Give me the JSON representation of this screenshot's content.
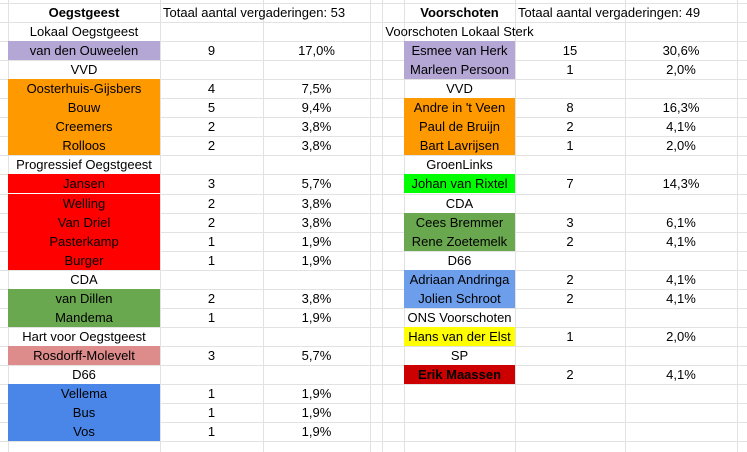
{
  "colors": {
    "gridline": "#e2e2e2",
    "purple": "#b4a7d6",
    "orange": "#ff9900",
    "red": "#ff0000",
    "darkred": "#cc0000",
    "green": "#6aa84f",
    "brightgreen": "#00ff00",
    "rose": "#dd8b8b",
    "blue": "#4a86e8",
    "lightblue": "#6d9eeb",
    "yellow": "#ffff00"
  },
  "left": {
    "title": "Oegstgeest",
    "total_label": "Totaal aantal vergaderingen: 53",
    "rows": [
      {
        "type": "party",
        "label": "Lokaal Oegstgeest"
      },
      {
        "type": "member",
        "name": "van den Ouweelen",
        "count": "9",
        "pct": "17,0%",
        "fill": "purple"
      },
      {
        "type": "party",
        "label": "VVD"
      },
      {
        "type": "member",
        "name": "Oosterhuis-Gijsbers",
        "count": "4",
        "pct": "7,5%",
        "fill": "orange"
      },
      {
        "type": "member",
        "name": "Bouw",
        "count": "5",
        "pct": "9,4%",
        "fill": "orange"
      },
      {
        "type": "member",
        "name": "Creemers",
        "count": "2",
        "pct": "3,8%",
        "fill": "orange"
      },
      {
        "type": "member",
        "name": "Rolloos",
        "count": "2",
        "pct": "3,8%",
        "fill": "orange"
      },
      {
        "type": "party",
        "label": "Progressief Oegstgeest"
      },
      {
        "type": "member",
        "name": "Jansen",
        "count": "3",
        "pct": "5,7%",
        "fill": "red"
      },
      {
        "type": "member",
        "name": "Welling",
        "count": "2",
        "pct": "3,8%",
        "fill": "red"
      },
      {
        "type": "member",
        "name": "Van Driel",
        "count": "2",
        "pct": "3,8%",
        "fill": "red"
      },
      {
        "type": "member",
        "name": "Pasterkamp",
        "count": "1",
        "pct": "1,9%",
        "fill": "red"
      },
      {
        "type": "member",
        "name": "Burger",
        "count": "1",
        "pct": "1,9%",
        "fill": "red"
      },
      {
        "type": "party",
        "label": "CDA"
      },
      {
        "type": "member",
        "name": "van Dillen",
        "count": "2",
        "pct": "3,8%",
        "fill": "green"
      },
      {
        "type": "member",
        "name": "Mandema",
        "count": "1",
        "pct": "1,9%",
        "fill": "green"
      },
      {
        "type": "party",
        "label": "Hart voor Oegstgeest"
      },
      {
        "type": "member",
        "name": "Rosdorff-Molevelt",
        "count": "3",
        "pct": "5,7%",
        "fill": "rose"
      },
      {
        "type": "party",
        "label": "D66"
      },
      {
        "type": "member",
        "name": "Vellema",
        "count": "1",
        "pct": "1,9%",
        "fill": "blue"
      },
      {
        "type": "member",
        "name": "Bus",
        "count": "1",
        "pct": "1,9%",
        "fill": "blue"
      },
      {
        "type": "member",
        "name": "Vos",
        "count": "1",
        "pct": "1,9%",
        "fill": "blue"
      }
    ]
  },
  "right": {
    "title": "Voorschoten",
    "total_label": "Totaal aantal vergaderingen: 49",
    "rows": [
      {
        "type": "party",
        "label": "Voorschoten Lokaal Sterk"
      },
      {
        "type": "member",
        "name": "Esmee van Herk",
        "count": "15",
        "pct": "30,6%",
        "fill": "purple"
      },
      {
        "type": "member",
        "name": "Marleen Persoon",
        "count": "1",
        "pct": "2,0%",
        "fill": "purple"
      },
      {
        "type": "party",
        "label": "VVD"
      },
      {
        "type": "member",
        "name": "Andre in 't Veen",
        "count": "8",
        "pct": "16,3%",
        "fill": "orange"
      },
      {
        "type": "member",
        "name": "Paul de Bruijn",
        "count": "2",
        "pct": "4,1%",
        "fill": "orange"
      },
      {
        "type": "member",
        "name": "Bart Lavrijsen",
        "count": "1",
        "pct": "2,0%",
        "fill": "orange"
      },
      {
        "type": "party",
        "label": "GroenLinks"
      },
      {
        "type": "member",
        "name": "Johan van Rixtel",
        "count": "7",
        "pct": "14,3%",
        "fill": "brightgreen"
      },
      {
        "type": "party",
        "label": "CDA"
      },
      {
        "type": "member",
        "name": "Cees Bremmer",
        "count": "3",
        "pct": "6,1%",
        "fill": "green"
      },
      {
        "type": "member",
        "name": "Rene Zoetemelk",
        "count": "2",
        "pct": "4,1%",
        "fill": "green"
      },
      {
        "type": "party",
        "label": "D66"
      },
      {
        "type": "member",
        "name": "Adriaan Andringa",
        "count": "2",
        "pct": "4,1%",
        "fill": "lightblue"
      },
      {
        "type": "member",
        "name": "Jolien Schroot",
        "count": "2",
        "pct": "4,1%",
        "fill": "lightblue"
      },
      {
        "type": "party",
        "label": "ONS Voorschoten"
      },
      {
        "type": "member",
        "name": "Hans van der Elst",
        "count": "1",
        "pct": "2,0%",
        "fill": "yellow"
      },
      {
        "type": "party",
        "label": "SP"
      },
      {
        "type": "member",
        "name": "Erik Maassen",
        "count": "2",
        "pct": "4,1%",
        "fill": "darkred",
        "bold": true
      }
    ]
  }
}
